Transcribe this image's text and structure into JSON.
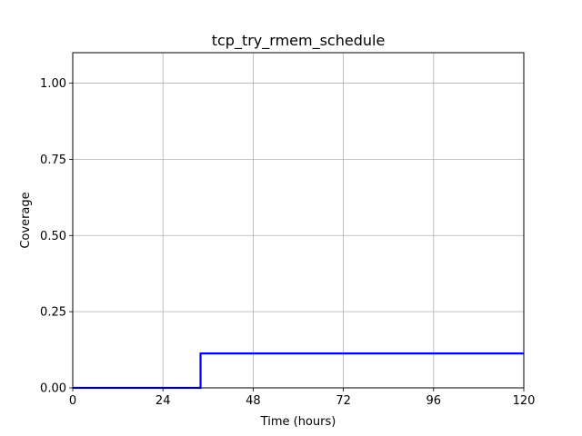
{
  "chart_data": {
    "type": "line",
    "title": "tcp_try_rmem_schedule",
    "xlabel": "Time (hours)",
    "ylabel": "Coverage",
    "xlim": [
      0,
      120
    ],
    "ylim": [
      0,
      1.1
    ],
    "xticks": [
      0,
      24,
      48,
      72,
      96,
      120
    ],
    "xtick_labels": [
      "0",
      "24",
      "48",
      "72",
      "96",
      "120"
    ],
    "yticks": [
      0.0,
      0.25,
      0.5,
      0.75,
      1.0
    ],
    "ytick_labels": [
      "0.00",
      "0.25",
      "0.50",
      "0.75",
      "1.00"
    ],
    "grid": true,
    "series": [
      {
        "color": "#0000ff",
        "x": [
          0,
          34,
          34,
          120
        ],
        "y": [
          0,
          0,
          0.113,
          0.113
        ]
      }
    ]
  }
}
